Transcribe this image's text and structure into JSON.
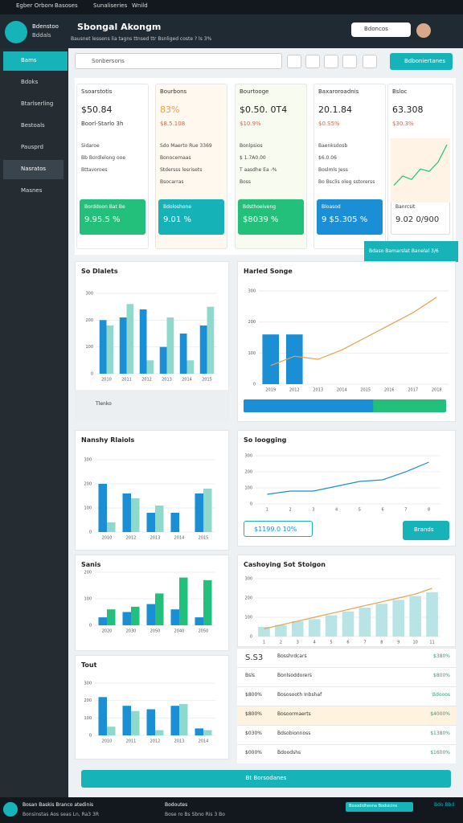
{
  "topbar": {
    "items": [
      "Egber Orbonetr",
      "Basoses",
      "Sunaliseries",
      "Wnild"
    ]
  },
  "header": {
    "logo_title": "Bdenstoo",
    "logo_sub": "Bddals",
    "title": "Sbongal Akongm",
    "subtitle": "Bausnet lessens lia tagns ttnsed ttr Bsnliged coste ? ls 3%",
    "search": "Bdoncos"
  },
  "sidebar": {
    "items": [
      "Bams",
      "Bdoks",
      "Btarlserling",
      "Bestoals",
      "Pausprd",
      "Nasratos",
      "Masnes"
    ]
  },
  "toolbar": {
    "search": "Sonbersons",
    "action": "Bdboniertanes"
  },
  "kpis": [
    {
      "label": "Ssoarstotis",
      "value": "$50.84",
      "delta": "Boorl-Starlo 3h",
      "lines": [
        "Sidaroe",
        "Bb Bordlelong ooe",
        "Bttavoroes"
      ],
      "tile_label": "Borddoon Bat Be",
      "tile_value": "9.95.5 %",
      "tile_color": "#22c07a"
    },
    {
      "label": "Bourbons",
      "value": "83%",
      "delta": "$8.5.108",
      "lines": [
        "Sdo Maerto Rue 3369",
        "Bonocemaas",
        "Stdersss lesrisets",
        "Bsocarras"
      ],
      "tile_label": "Bdoloshone",
      "tile_value": "9.01 %",
      "tile_color": "#15b3b8"
    },
    {
      "label": "Bourtooge",
      "value": "$0.50. 0T4",
      "delta": "$10.9%",
      "lines": [
        "Bonlpsios",
        "$ 1.7A0.00",
        "T aasdhe Ea -%",
        "Boss"
      ],
      "tile_label": "Bdsthoeiveng",
      "tile_value": "$8039 %",
      "tile_color": "#22c07a"
    },
    {
      "label": "Baxaroroadnis",
      "value": "20.1.84",
      "delta": "$0.S5%",
      "lines": [
        "Baenksdosb",
        "$6.0.06",
        "Boslmls Jess",
        "Bo Bsclis oleg sstorerss"
      ],
      "tile_label": "Bloasod",
      "tile_value": "9 $5.305 %",
      "tile_color": "#1a8fd6"
    },
    {
      "label": "Bsloc",
      "value": "63.308",
      "delta": "$30.3%",
      "lines": [],
      "tile_label": "Banrcsit",
      "tile_value": "9.02 0/900",
      "tile_color": "#ffffff",
      "spark": [
        10,
        18,
        15,
        24,
        22,
        30,
        45
      ]
    }
  ],
  "banner": "Bdaso Bamarslat Banelal 3/6",
  "charts": [
    {
      "type": "bar",
      "title": "So Dlalets",
      "ylim": [
        0,
        300
      ],
      "yticks": [
        0,
        100,
        200,
        300
      ],
      "categories": [
        "2010",
        "2011",
        "2012",
        "2013",
        "2014",
        "2015"
      ],
      "series": [
        {
          "color": "#1a8fd6",
          "values": [
            200,
            210,
            240,
            100,
            150,
            180
          ]
        },
        {
          "color": "#8fd8cc",
          "values": [
            180,
            260,
            50,
            210,
            50,
            250
          ]
        }
      ],
      "note": "Tlenko"
    },
    {
      "type": "line",
      "title": "Harled Songe",
      "ylim": [
        0,
        300
      ],
      "yticks": [
        0,
        100,
        200,
        300
      ],
      "categories": [
        "2019",
        "2012",
        "2013",
        "2014",
        "2015",
        "2016",
        "2017",
        "2018"
      ],
      "series": [
        {
          "type": "bar",
          "color": "#1a8fd6",
          "values": [
            160,
            160,
            null,
            null,
            null,
            null,
            null,
            null
          ]
        },
        {
          "type": "line",
          "color": "#e8a04a",
          "values": [
            60,
            90,
            80,
            110,
            150,
            190,
            230,
            280
          ]
        }
      ],
      "progress": 64
    },
    {
      "type": "bar",
      "title": "Nanshy Rlaiols",
      "ylim": [
        0,
        300
      ],
      "yticks": [
        0,
        100,
        200,
        300
      ],
      "categories": [
        "2010",
        "2012",
        "2013",
        "2014",
        "2015"
      ],
      "series": [
        {
          "color": "#1a8fd6",
          "values": [
            200,
            160,
            80,
            80,
            160
          ]
        },
        {
          "color": "#8fd8cc",
          "values": [
            40,
            140,
            110,
            0,
            180
          ]
        }
      ]
    },
    {
      "type": "line",
      "title": "So loogging",
      "ylim": [
        0,
        300
      ],
      "yticks": [
        0,
        100,
        200,
        300
      ],
      "categories": [
        "1",
        "2",
        "3",
        "4",
        "5",
        "6",
        "7",
        "8"
      ],
      "series": [
        {
          "type": "line",
          "color": "#1a8fd6",
          "values": [
            60,
            80,
            80,
            110,
            140,
            150,
            200,
            260
          ]
        }
      ],
      "callout": "$1199.0 10%",
      "cta": "Brands"
    },
    {
      "type": "bar",
      "title": "Sanis",
      "ylim": [
        0,
        200
      ],
      "yticks": [
        0,
        100,
        200
      ],
      "categories": [
        "2020",
        "2030",
        "2050",
        "2040",
        "2050"
      ],
      "series": [
        {
          "color": "#1a8fd6",
          "values": [
            30,
            50,
            80,
            60,
            30
          ]
        },
        {
          "color": "#22c07a",
          "values": [
            60,
            70,
            120,
            180,
            170
          ]
        }
      ]
    },
    {
      "type": "bar",
      "title": "Cashoying Sot Stoigon",
      "ylim": [
        0,
        300
      ],
      "yticks": [
        0,
        100,
        200,
        300
      ],
      "categories": [
        "1",
        "2",
        "3",
        "4",
        "5",
        "6",
        "7",
        "8",
        "9",
        "10",
        "11"
      ],
      "series": [
        {
          "type": "bar",
          "color": "#b9e4e6",
          "values": [
            50,
            60,
            80,
            90,
            110,
            130,
            150,
            170,
            190,
            210,
            230
          ]
        },
        {
          "type": "line",
          "color": "#e8a04a",
          "values": [
            40,
            60,
            80,
            100,
            120,
            140,
            160,
            180,
            200,
            220,
            250
          ]
        }
      ]
    },
    {
      "type": "bar",
      "title": "Tout",
      "ylim": [
        0,
        300
      ],
      "yticks": [
        0,
        100,
        200,
        300
      ],
      "categories": [
        "2010",
        "2011",
        "2012",
        "2013",
        "2014"
      ],
      "series": [
        {
          "color": "#1a8fd6",
          "values": [
            220,
            170,
            150,
            170,
            40
          ]
        },
        {
          "color": "#8fd8cc",
          "values": [
            50,
            140,
            30,
            180,
            30
          ]
        }
      ]
    }
  ],
  "table": {
    "rows": [
      [
        "S.S3",
        "Bosshrdcars",
        "$380%"
      ],
      [
        "Bsls",
        "Bonlsoddorers",
        "$800%"
      ],
      [
        "$800%",
        "Bososooth Inbshaf",
        "Bdooos"
      ],
      [
        "$800%",
        "Bosoormaerts",
        "$4000%"
      ],
      [
        "$030%",
        "Bdsobionnoss",
        "$1380%"
      ],
      [
        "$000%",
        "Bdoodshs",
        "$1600%"
      ]
    ]
  },
  "bottom_button": "Bt Borsodanes",
  "footer": {
    "left": "Bosan Baskis Branco atedinis",
    "left_sub": "Bonsinstas Aos seas Ln, Ra3 3R",
    "mid": "Bodoutes",
    "mid_sub": "Bose ro Bs Sbno Ris 3 Bo",
    "right": "Bosodidhesna Bodsicins",
    "right2": "Bdo Bbd"
  }
}
